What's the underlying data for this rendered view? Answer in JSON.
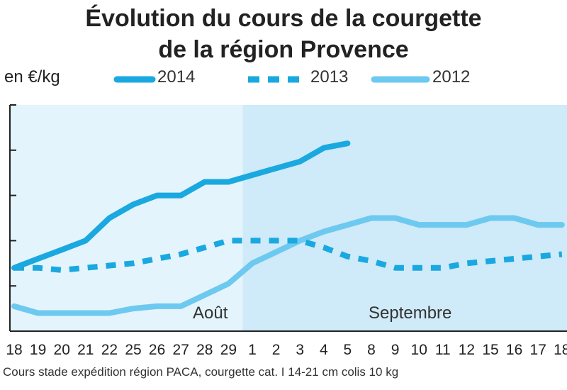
{
  "chart_data": {
    "type": "line",
    "title": "Évolution du cours de la courgette",
    "subtitle": "de la région Provence",
    "ylabel": "en €/kg",
    "categories": [
      "18",
      "19",
      "20",
      "21",
      "22",
      "25",
      "26",
      "27",
      "28",
      "29",
      "1",
      "2",
      "3",
      "4",
      "5",
      "8",
      "9",
      "10",
      "11",
      "12",
      "15",
      "16",
      "17",
      "18"
    ],
    "month_labels": [
      "Août",
      "Septembre"
    ],
    "ylim": [
      0,
      5
    ],
    "series": [
      {
        "name": "2014",
        "style": "solid",
        "color": "#1aa8e0",
        "values": [
          1.4,
          1.6,
          1.8,
          2.0,
          2.5,
          2.8,
          3.0,
          3.0,
          3.3,
          3.3,
          3.45,
          3.6,
          3.75,
          4.05,
          4.15,
          null,
          null,
          null,
          null,
          null,
          null,
          null,
          null,
          null
        ]
      },
      {
        "name": "2013",
        "style": "dashed",
        "color": "#1aa8e0",
        "values": [
          1.4,
          1.4,
          1.35,
          1.4,
          1.45,
          1.5,
          1.6,
          1.7,
          1.85,
          2.0,
          2.0,
          2.0,
          2.0,
          1.85,
          1.65,
          1.55,
          1.4,
          1.4,
          1.4,
          1.5,
          1.55,
          1.6,
          1.65,
          1.7
        ]
      },
      {
        "name": "2012",
        "style": "solid",
        "color": "#6dc9ef",
        "values": [
          0.55,
          0.4,
          0.4,
          0.4,
          0.4,
          0.5,
          0.55,
          0.55,
          0.8,
          1.05,
          1.5,
          1.75,
          2.0,
          2.2,
          2.35,
          2.5,
          2.5,
          2.35,
          2.35,
          2.35,
          2.5,
          2.5,
          2.35,
          2.35
        ]
      }
    ],
    "grid": false,
    "legend_position": "top"
  },
  "footnote": "Cours stade expédition région PACA, courgette cat. I 14-21 cm colis 10 kg",
  "colors": {
    "bg_august": "#e4f4fc",
    "bg_september": "#cfeaf8",
    "axis": "#222222"
  }
}
